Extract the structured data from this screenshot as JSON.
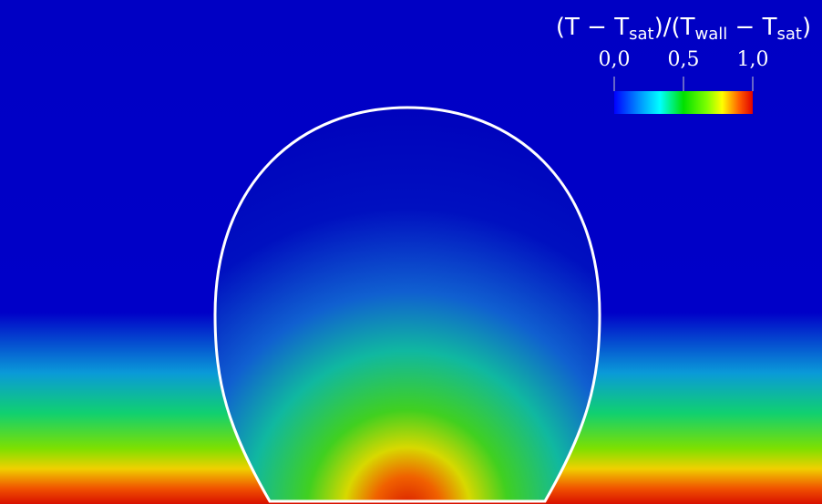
{
  "colorbar": {
    "title_parts": [
      {
        "text": "(T − T"
      },
      {
        "text": "sat",
        "sub": true
      },
      {
        "text": ")/(T"
      },
      {
        "text": "wall",
        "sub": true
      },
      {
        "text": " − T"
      },
      {
        "text": "sat",
        "sub": true
      },
      {
        "text": ")"
      }
    ],
    "range": [
      0,
      1
    ],
    "ticks": [
      {
        "value": 0,
        "label": "0,0"
      },
      {
        "value": 0.5,
        "label": "0,5"
      },
      {
        "value": 1,
        "label": "1,0"
      }
    ]
  }
}
